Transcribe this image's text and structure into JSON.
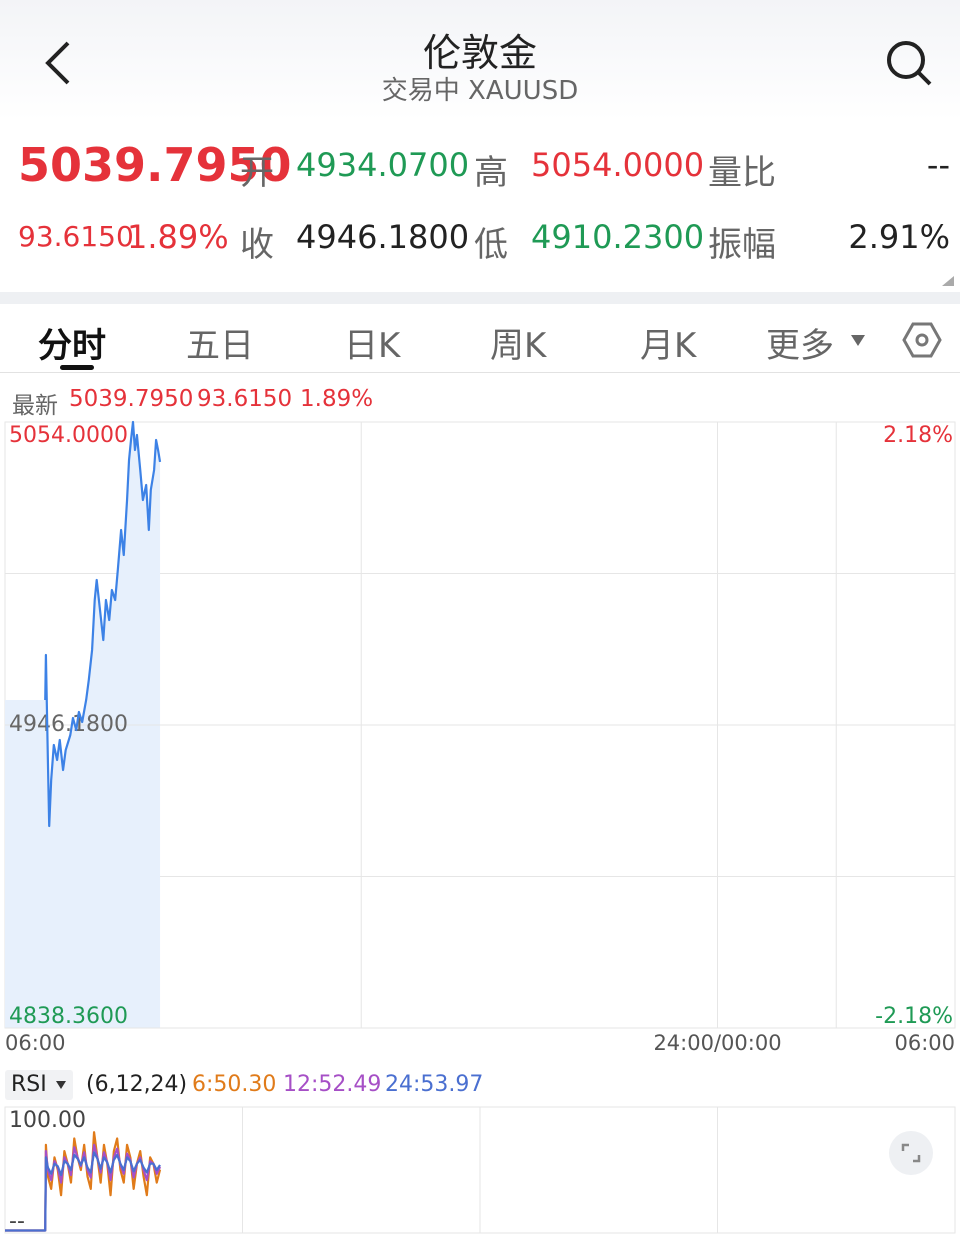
{
  "header": {
    "title": "伦敦金",
    "subtitle": "交易中 XAUUSD"
  },
  "quote": {
    "price": "5039.7950",
    "change": "93.6150",
    "change_pct": "1.89%",
    "open_label": "开",
    "open": "4934.0700",
    "high_label": "高",
    "high": "5054.0000",
    "ratio_label": "量比",
    "ratio": "--",
    "close_label": "收",
    "close": "4946.1800",
    "low_label": "低",
    "low": "4910.2300",
    "amp_label": "振幅",
    "amp": "2.91%"
  },
  "tabs": [
    "分时",
    "五日",
    "日K",
    "周K",
    "月K",
    "更多"
  ],
  "chart_data": [
    {
      "type": "line",
      "info_label": "最新",
      "info": [
        "5039.7950",
        "93.6150",
        "1.89%"
      ],
      "x": [
        61,
        62,
        65,
        67,
        70,
        74,
        79,
        83,
        88,
        92,
        99,
        103,
        108,
        112,
        117,
        123,
        127,
        132,
        136,
        139,
        144,
        149,
        153,
        158,
        162,
        167,
        171,
        176,
        180,
        185,
        188,
        191,
        194,
        197,
        200,
        205,
        209,
        214,
        218,
        221,
        226,
        229,
        232,
        235
      ],
      "series": [
        {
          "color": "#3d82e6",
          "values": [
            4955.08,
            4971.09,
            4933.73,
            4910.23,
            4926.61,
            4939.06,
            4933.73,
            4940.84,
            4930.17,
            4937.28,
            4942.62,
            4948.67,
            4944.4,
            4950.81,
            4947.25,
            4955.08,
            4962.19,
            4972.87,
            4990.66,
            4997.78,
            4987.1,
            4976.43,
            4990.66,
            4983.54,
            4994.22,
            4990.66,
            5001.34,
            5015.57,
            5006.67,
            5026.24,
            5040.48,
            5047.59,
            5054.0,
            5044.04,
            5049.37,
            5036.92,
            5026.24,
            5031.58,
            5015.57,
            5029.8,
            5036.92,
            5047.59,
            5044.04,
            5039.8
          ]
        }
      ],
      "xlim": [
        0,
        1440
      ],
      "xticks": [
        {
          "value": 0,
          "label": "06:00"
        },
        {
          "value": 1080,
          "label": "24:00/00:00"
        },
        {
          "value": 1440,
          "label": "06:00"
        }
      ],
      "xgrid": [
        540,
        1260
      ],
      "ylim": [
        4838.36,
        5054
      ],
      "yticks": [
        {
          "value": 5054,
          "label": "5054.0000"
        },
        {
          "value": 4946.18,
          "label": "4946.1800"
        },
        {
          "value": 4838.36,
          "label": "4838.3600"
        }
      ],
      "ygrid": [
        5000.09,
        4892.27
      ],
      "y2lim": [
        -2.18,
        2.18
      ],
      "y2ticks": [
        {
          "value": 2.18,
          "label": "2.18%"
        },
        {
          "value": -2.18,
          "label": "-2.18%"
        }
      ],
      "area": true
    },
    {
      "type": "line",
      "indicator": "RSI",
      "params": "(6,12,24)",
      "x": [
        0,
        61,
        62,
        65,
        70,
        75,
        80,
        85,
        90,
        95,
        100,
        105,
        110,
        115,
        120,
        125,
        130,
        135,
        140,
        145,
        150,
        155,
        160,
        165,
        170,
        175,
        180,
        185,
        190,
        195,
        200,
        205,
        210,
        215,
        220,
        225,
        230,
        235
      ],
      "series": [
        {
          "name": "6:50.30",
          "color": "#e07b1a",
          "values": [
            2,
            2,
            70,
            45,
            35,
            60,
            50,
            30,
            65,
            55,
            40,
            75,
            60,
            50,
            70,
            45,
            35,
            80,
            60,
            40,
            70,
            55,
            30,
            65,
            75,
            50,
            40,
            70,
            60,
            35,
            55,
            65,
            45,
            30,
            60,
            55,
            40,
            50.3
          ]
        },
        {
          "name": "12:52.49",
          "color": "#a64fc6",
          "values": [
            2,
            2,
            65,
            50,
            42,
            57,
            52,
            40,
            60,
            55,
            46,
            68,
            60,
            53,
            64,
            50,
            44,
            70,
            60,
            48,
            64,
            56,
            42,
            60,
            67,
            54,
            47,
            63,
            58,
            44,
            55,
            60,
            50,
            42,
            57,
            55,
            47,
            52.49
          ]
        },
        {
          "name": "24:53.97",
          "color": "#4a6fd0",
          "values": [
            2,
            2,
            60,
            52,
            47,
            55,
            53,
            46,
            57,
            55,
            50,
            62,
            59,
            54,
            60,
            52,
            48,
            64,
            59,
            51,
            60,
            56,
            48,
            58,
            62,
            55,
            50,
            60,
            57,
            49,
            55,
            58,
            52,
            48,
            55,
            55,
            50,
            53.97
          ]
        }
      ],
      "xlim": [
        0,
        1440
      ],
      "xgrid": [
        360,
        720,
        1080
      ],
      "ylim": [
        0,
        100
      ],
      "yticks": [
        {
          "value": 100,
          "label": "100.00"
        },
        {
          "value": 0,
          "label": "--"
        }
      ]
    }
  ]
}
